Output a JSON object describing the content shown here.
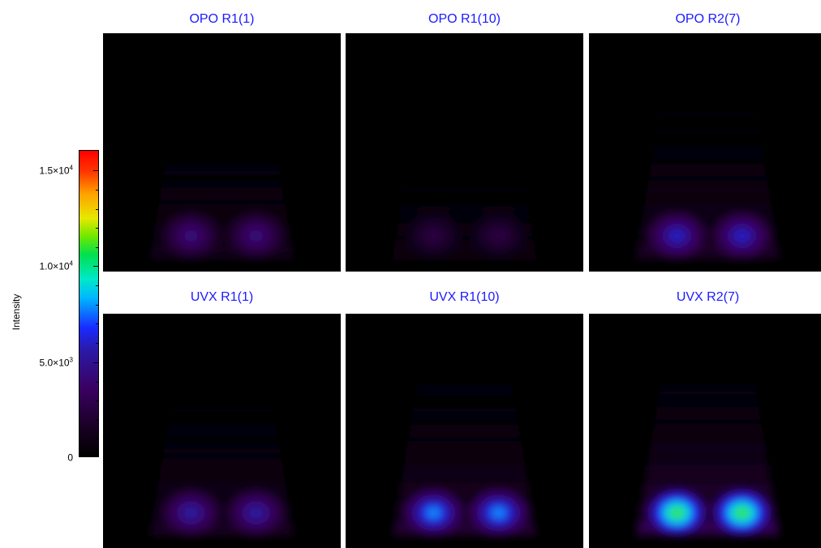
{
  "colorbar": {
    "label": "Intensity",
    "ticks": [
      {
        "mantissa": "1.5×10",
        "exp": "4",
        "value": 15000
      },
      {
        "mantissa": "1.0×10",
        "exp": "4",
        "value": 10000
      },
      {
        "mantissa": "5.0×10",
        "exp": "3",
        "value": 5000
      },
      {
        "mantissa": "0",
        "exp": "",
        "value": 0
      }
    ],
    "range": [
      0,
      16000
    ]
  },
  "panels": [
    {
      "title": "OPO R1(1)",
      "peak": 0.3
    },
    {
      "title": "OPO R1(10)",
      "peak": 0.18
    },
    {
      "title": "OPO R2(7)",
      "peak": 0.42
    },
    {
      "title": "UVX R1(1)",
      "peak": 0.38
    },
    {
      "title": "UVX R1(10)",
      "peak": 0.55
    },
    {
      "title": "UVX R2(7)",
      "peak": 0.78
    }
  ]
}
